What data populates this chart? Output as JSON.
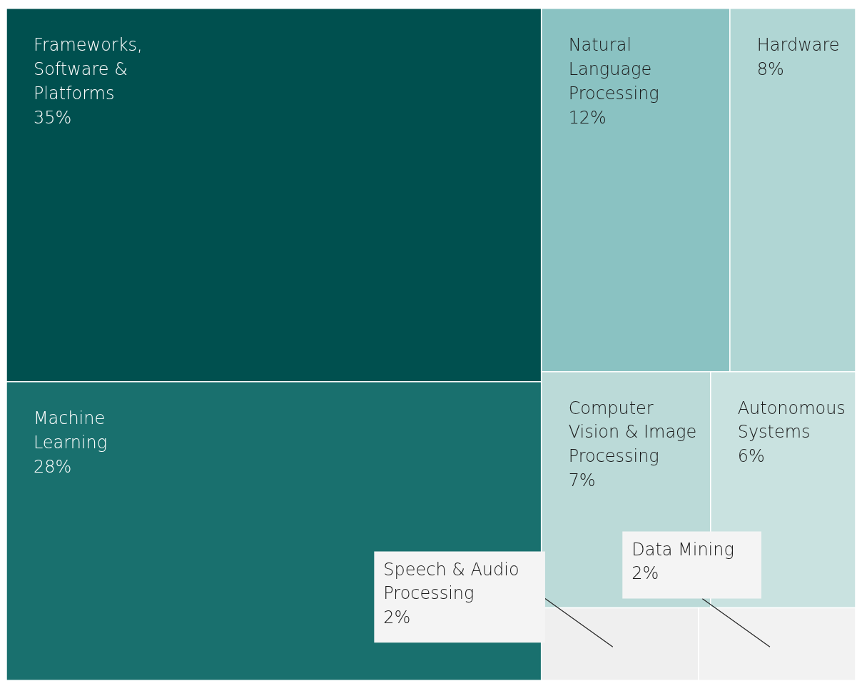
{
  "chart_data": {
    "type": "other",
    "categories": [
      "Frameworks, Software & Platforms",
      "Machine Learning",
      "Natural Language Processing",
      "Hardware",
      "Computer Vision & Image Processing",
      "Autonomous Systems",
      "Speech & Audio Processing",
      "Data Mining"
    ],
    "values": [
      35,
      28,
      12,
      8,
      7,
      6,
      2,
      2
    ],
    "value_labels": [
      "35%",
      "28%",
      "12%",
      "8%",
      "7%",
      "6%",
      "2%",
      "2%"
    ],
    "colors": [
      "#00504f",
      "#19706e",
      "#8ac2c2",
      "#b0d6d4",
      "#bbdad8",
      "#c9e2e0",
      "#efefef",
      "#f2f2f2"
    ],
    "legend": false
  }
}
